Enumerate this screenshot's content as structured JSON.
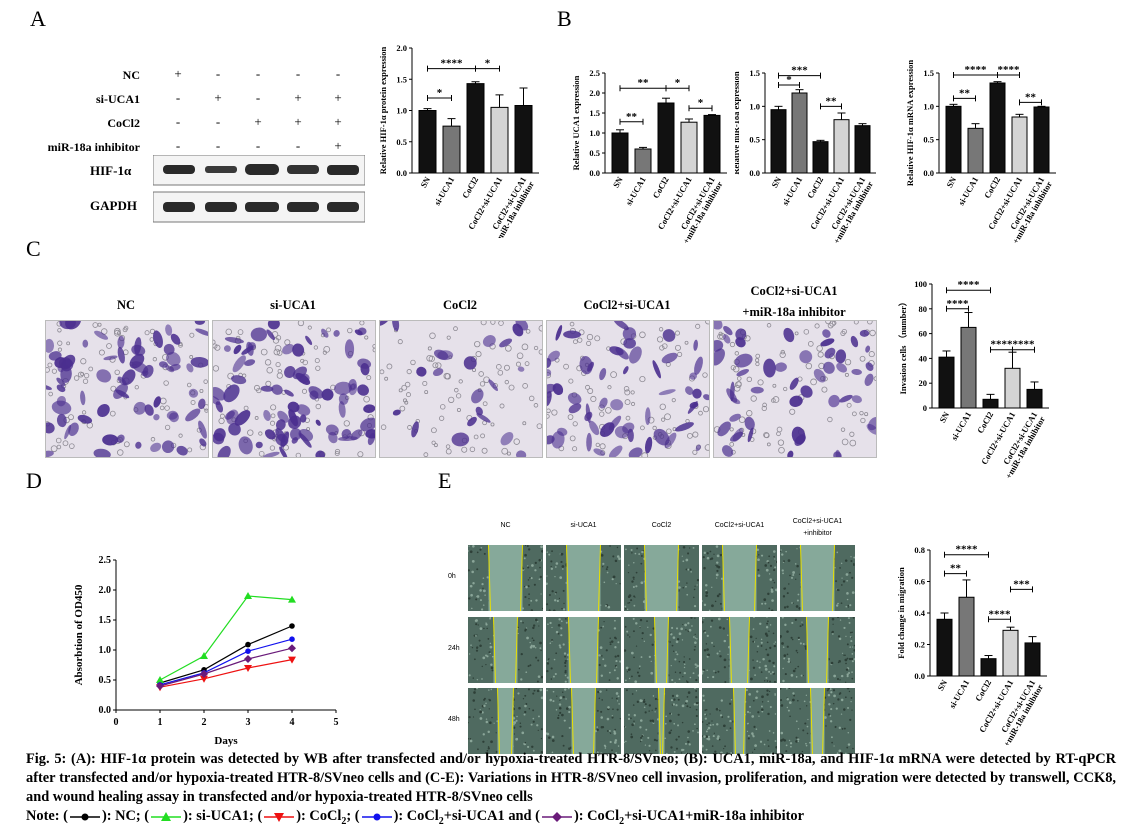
{
  "panels": {
    "A": "A",
    "B": "B",
    "C": "C",
    "D": "D",
    "E": "E"
  },
  "panelA": {
    "rows": [
      {
        "label": "NC",
        "signs": [
          "+",
          "-",
          "-",
          "-",
          "-"
        ]
      },
      {
        "label": "si-UCA1",
        "signs": [
          "-",
          "+",
          "-",
          "+",
          "+"
        ]
      },
      {
        "label": "CoCl2",
        "signs": [
          "-",
          "-",
          "+",
          "+",
          "+"
        ]
      },
      {
        "label": "miR-18a inhibitor",
        "signs": [
          "-",
          "-",
          "-",
          "-",
          "+"
        ]
      }
    ],
    "blots": [
      "HIF-1α",
      "GAPDH"
    ]
  },
  "bar_categories": [
    "SN",
    "si-UCA1",
    "CoCl2",
    "CoCl2+si-UCA1",
    "CoCl2+si-UCA1 +miR-18a inhibitor"
  ],
  "bar_categories_short": [
    "SN",
    "si-UCA1",
    "CoCl2",
    "CoCl2+si-UCA1"
  ],
  "panelC": {
    "titles": [
      "NC",
      "si-UCA1",
      "CoCl2",
      "CoCl2+si-UCA1",
      "CoCl2+si-UCA1",
      "+miR-18a inhibitor"
    ]
  },
  "panelE": {
    "cols": [
      "NC",
      "si-UCA1",
      "CoCl2",
      "CoCl2+si-UCA1",
      "CoCl2+si-UCA1",
      "+inhibitor"
    ],
    "rows": [
      "0h",
      "24h",
      "48h"
    ]
  },
  "chart_data": [
    {
      "id": "A",
      "type": "bar",
      "ylabel": "Relative HIF-1α protein expression",
      "ylim": [
        0,
        2.0
      ],
      "yticks": [
        "0.0",
        "0.5",
        "1.0",
        "1.5",
        "2.0"
      ],
      "values": [
        1.0,
        0.75,
        1.43,
        1.05,
        1.08
      ],
      "errors": [
        0.03,
        0.12,
        0.03,
        0.2,
        0.28
      ],
      "sig": [
        {
          "text": "*",
          "from": 0,
          "to": 1,
          "y": 1.2
        },
        {
          "text": "****",
          "from": 0,
          "to": 2,
          "y": 1.67
        },
        {
          "text": "*",
          "from": 2,
          "to": 3,
          "y": 1.67
        }
      ]
    },
    {
      "id": "B1",
      "type": "bar",
      "ylabel": "Relative UCA1 expression",
      "ylim": [
        0,
        2.5
      ],
      "yticks": [
        "0.0",
        "0.5",
        "1.0",
        "1.5",
        "2.0",
        "2.5"
      ],
      "values": [
        1.0,
        0.6,
        1.75,
        1.27,
        1.44
      ],
      "errors": [
        0.08,
        0.04,
        0.12,
        0.08,
        0.02
      ],
      "sig": [
        {
          "text": "**",
          "from": 0,
          "to": 1,
          "y": 1.28
        },
        {
          "text": "**",
          "from": 0,
          "to": 2,
          "y": 2.12
        },
        {
          "text": "*",
          "from": 2,
          "to": 3,
          "y": 2.12
        },
        {
          "text": "*",
          "from": 3,
          "to": 4,
          "y": 1.62
        }
      ]
    },
    {
      "id": "B2",
      "type": "bar",
      "ylabel": "Relative miR-18a expression",
      "ylim": [
        0,
        1.5
      ],
      "yticks": [
        "0.0",
        "0.5",
        "1.0",
        "1.5"
      ],
      "values": [
        0.95,
        1.2,
        0.47,
        0.8,
        0.71
      ],
      "errors": [
        0.05,
        0.05,
        0.02,
        0.1,
        0.03
      ],
      "sig": [
        {
          "text": "*",
          "from": 0,
          "to": 1,
          "y": 1.32
        },
        {
          "text": "***",
          "from": 0,
          "to": 2,
          "y": 1.46
        },
        {
          "text": "**",
          "from": 2,
          "to": 3,
          "y": 1.0
        }
      ]
    },
    {
      "id": "B3",
      "type": "bar",
      "ylabel": "Relative HIF-1α mRNA expression",
      "ylim": [
        0,
        1.5
      ],
      "yticks": [
        "0.0",
        "0.5",
        "1.0",
        "1.5"
      ],
      "values": [
        1.0,
        0.67,
        1.35,
        0.84,
        0.99
      ],
      "errors": [
        0.03,
        0.07,
        0.02,
        0.04,
        0.01
      ],
      "sig": [
        {
          "text": "**",
          "from": 0,
          "to": 1,
          "y": 1.12
        },
        {
          "text": "****",
          "from": 0,
          "to": 2,
          "y": 1.47
        },
        {
          "text": "****",
          "from": 2,
          "to": 3,
          "y": 1.47
        },
        {
          "text": "**",
          "from": 3,
          "to": 4,
          "y": 1.06
        }
      ]
    },
    {
      "id": "C",
      "type": "bar",
      "ylabel": "Invasion cells （number）",
      "ylim": [
        0,
        100
      ],
      "yticks": [
        "0",
        "20",
        "40",
        "60",
        "80",
        "100"
      ],
      "values": [
        41,
        65,
        7,
        32,
        15
      ],
      "errors": [
        5,
        12,
        4,
        13,
        6
      ],
      "sig": [
        {
          "text": "****",
          "from": 0,
          "to": 1,
          "y": 80
        },
        {
          "text": "****",
          "from": 0,
          "to": 2,
          "y": 95
        },
        {
          "text": "****",
          "from": 2,
          "to": 3,
          "y": 47
        },
        {
          "text": "****",
          "from": 3,
          "to": 4,
          "y": 47
        }
      ]
    },
    {
      "id": "D",
      "type": "line",
      "xlabel": "Days",
      "ylabel": "Absorbtion of OD450",
      "xlim": [
        0,
        5
      ],
      "ylim": [
        0,
        2.5
      ],
      "xticks": [
        "0",
        "1",
        "2",
        "3",
        "4",
        "5"
      ],
      "yticks": [
        "0.0",
        "0.5",
        "1.0",
        "1.5",
        "2.0",
        "2.5"
      ],
      "x": [
        1,
        2,
        3,
        4
      ],
      "series": [
        {
          "name": "NC",
          "color": "#000000",
          "marker": "circle",
          "values": [
            0.45,
            0.67,
            1.09,
            1.4
          ]
        },
        {
          "name": "si-UCA1",
          "color": "#22dd22",
          "marker": "triangle-up",
          "values": [
            0.5,
            0.9,
            1.9,
            1.84
          ]
        },
        {
          "name": "CoCl2",
          "color": "#ee1111",
          "marker": "triangle-down",
          "values": [
            0.38,
            0.52,
            0.7,
            0.84
          ]
        },
        {
          "name": "CoCl2+si-UCA1",
          "color": "#1111ee",
          "marker": "circle",
          "values": [
            0.42,
            0.62,
            0.98,
            1.18
          ]
        },
        {
          "name": "CoCl2+si-UCA1+miR-18a inhibitor",
          "color": "#6a1b7a",
          "marker": "diamond",
          "values": [
            0.4,
            0.6,
            0.85,
            1.03
          ]
        }
      ]
    },
    {
      "id": "E",
      "type": "bar",
      "ylabel": "Fold change in migration",
      "ylim": [
        0,
        0.8
      ],
      "yticks": [
        "0.0",
        "0.2",
        "0.4",
        "0.6",
        "0.8"
      ],
      "values": [
        0.36,
        0.5,
        0.11,
        0.29,
        0.21
      ],
      "errors": [
        0.04,
        0.11,
        0.02,
        0.02,
        0.04
      ],
      "sig": [
        {
          "text": "**",
          "from": 0,
          "to": 1,
          "y": 0.65
        },
        {
          "text": "****",
          "from": 0,
          "to": 2,
          "y": 0.77
        },
        {
          "text": "****",
          "from": 2,
          "to": 3,
          "y": 0.36
        },
        {
          "text": "***",
          "from": 3,
          "to": 4,
          "y": 0.55
        }
      ]
    }
  ],
  "caption": "Fig. 5: (A): HIF-1α protein was detected by WB after transfected and/or hypoxia-treated HTR-8/SVneo; (B): UCA1, miR-18a, and HIF-1α mRNA were detected by RT-qPCR after transfected and/or hypoxia-treated HTR-8/SVneo cells and (C-E): Variations in HTR-8/SVneo cell invasion, proliferation, and migration were detected by transwell, CCK8, and wound healing assay in transfected and/or hypoxia-treated HTR-8/SVneo cells",
  "note": {
    "prefix": "Note: (",
    "items": [
      {
        "text": "): NC; (",
        "color": "#000000",
        "marker": "circle"
      },
      {
        "text": "): si-UCA1; (",
        "color": "#22dd22",
        "marker": "triangle-up"
      },
      {
        "text": "): CoCl",
        "sub": "2",
        "tail": "; (",
        "color": "#ee1111",
        "marker": "triangle-down"
      },
      {
        "text": "): CoCl",
        "sub": "2",
        "tail": "+si-UCA1 and (",
        "color": "#1111ee",
        "marker": "circle"
      },
      {
        "text": "): CoCl",
        "sub": "2",
        "tail": "+si-UCA1+miR-18a inhibitor",
        "color": "#6a1b7a",
        "marker": "diamond"
      }
    ]
  }
}
